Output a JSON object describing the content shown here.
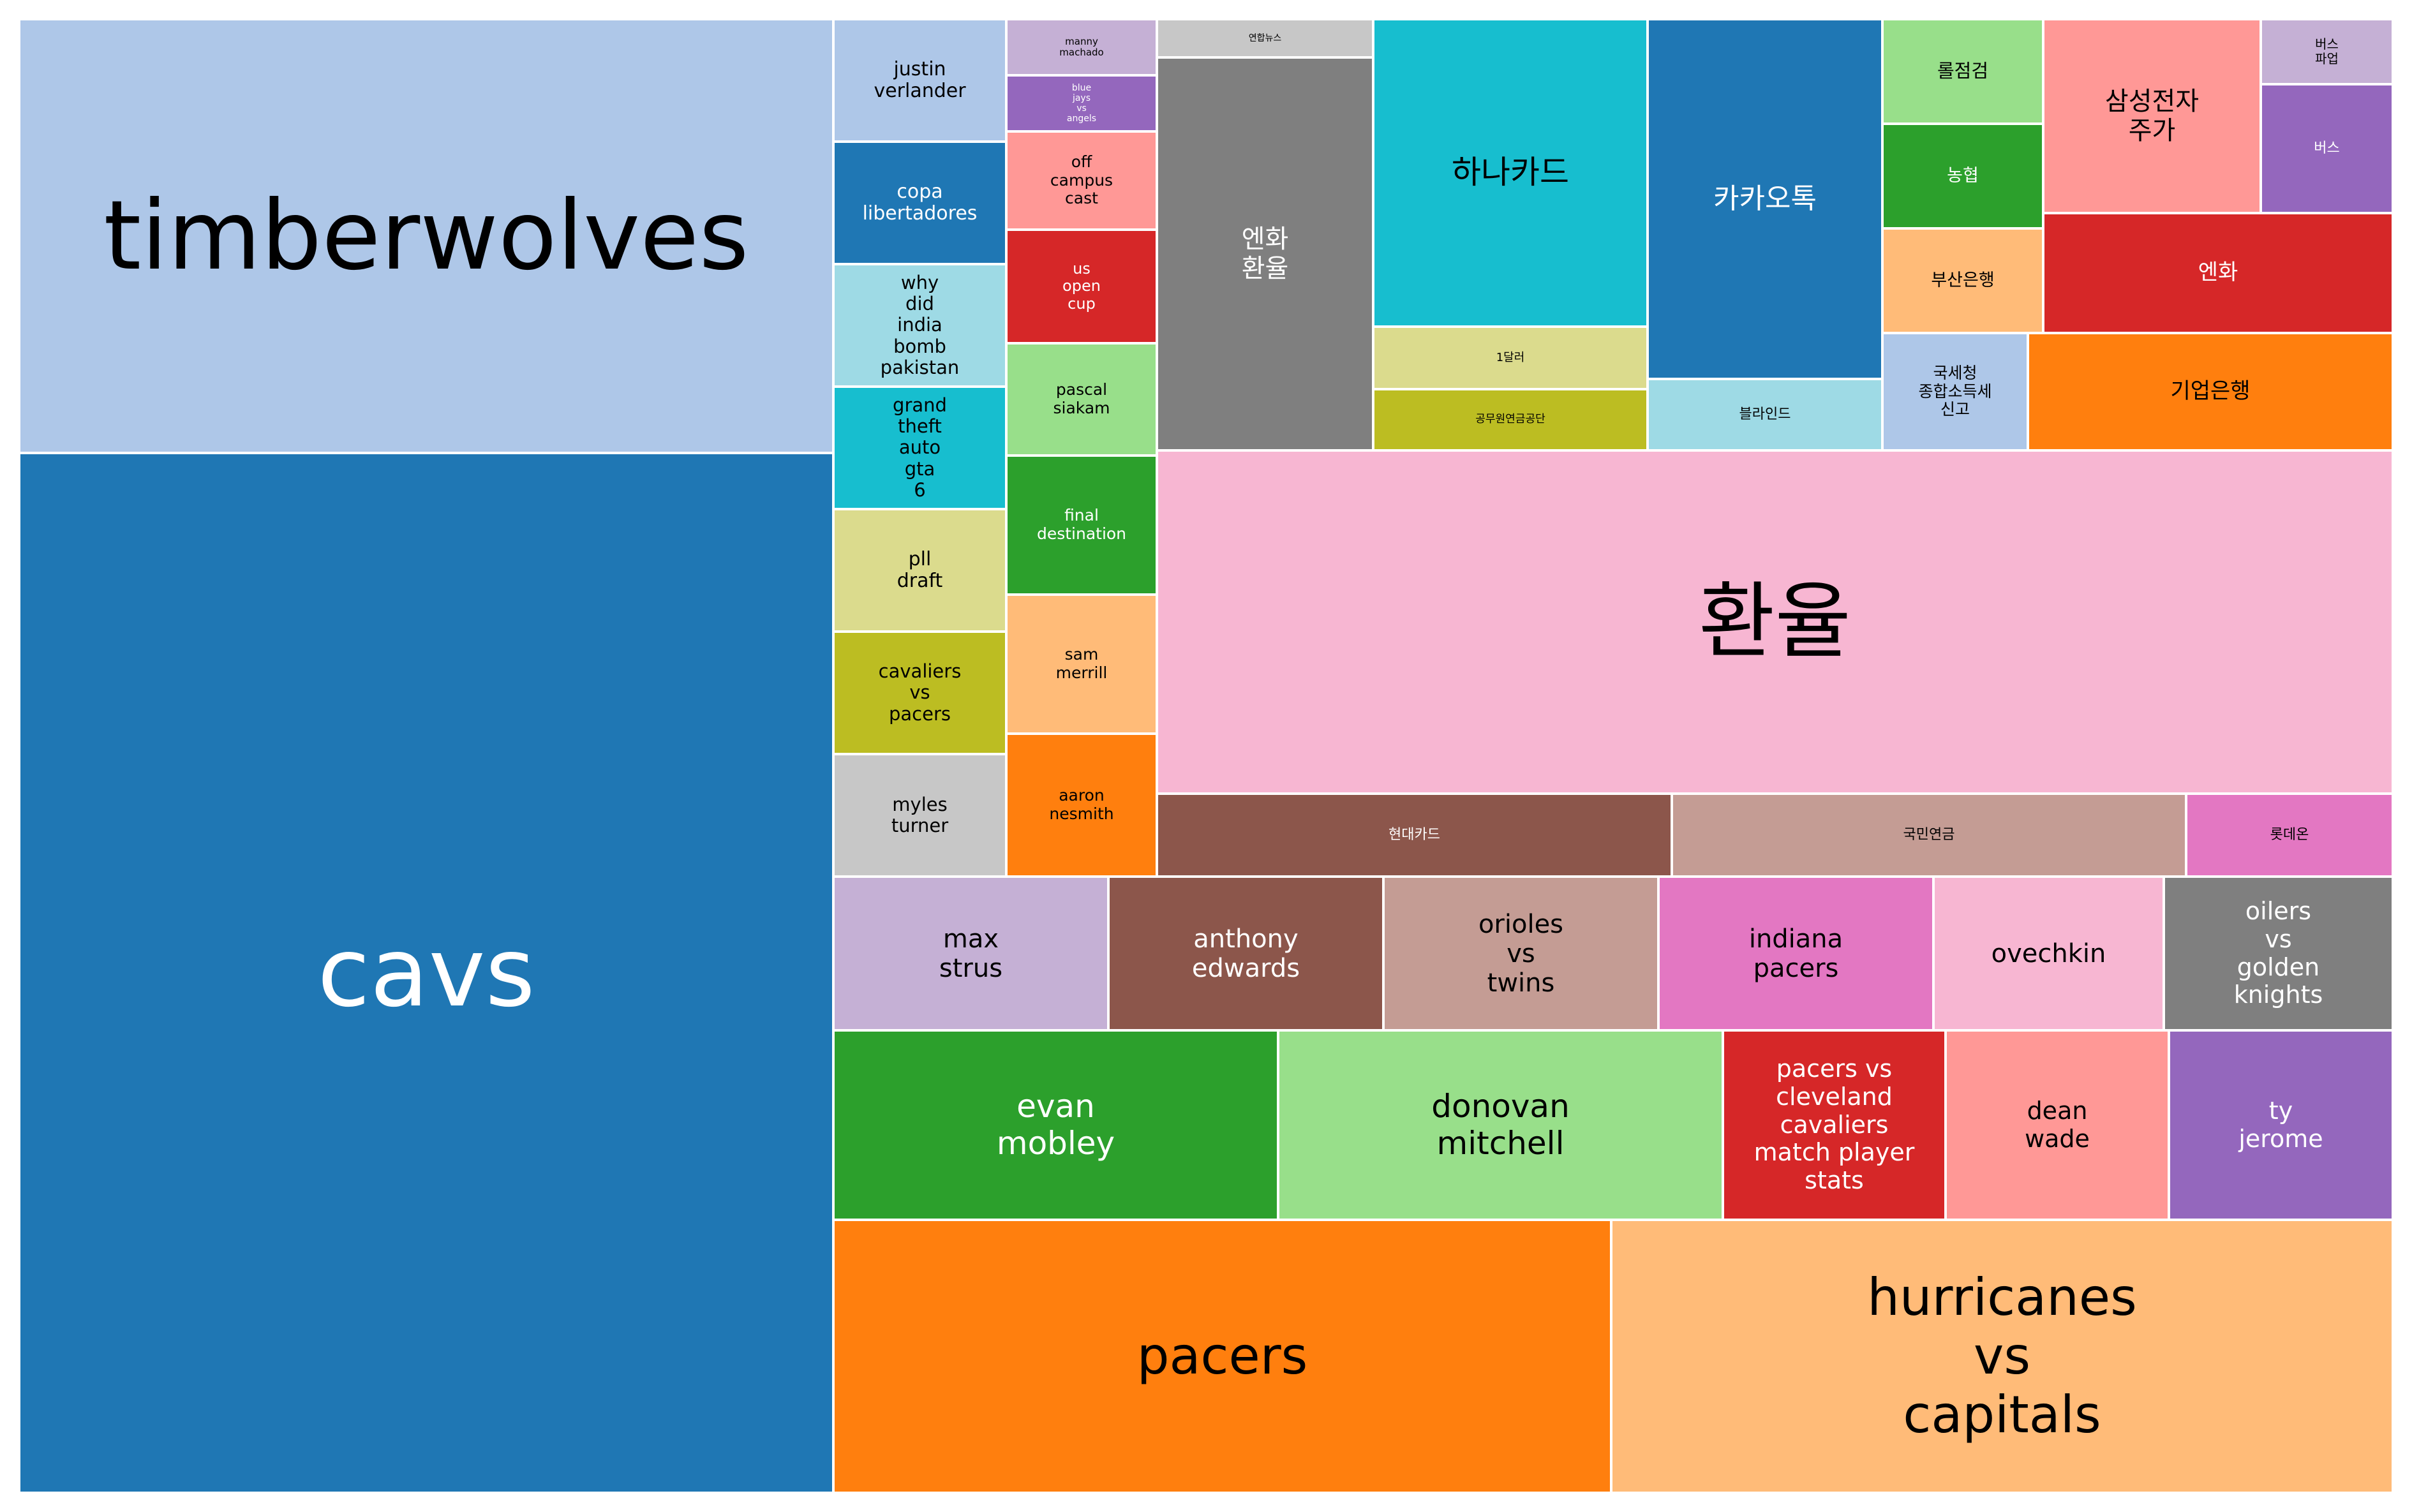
{
  "chart_data": {
    "type": "treemap",
    "title": "",
    "items": [
      {
        "label": "timberwolves",
        "color": "#aec7e8",
        "text_color": "#000000"
      },
      {
        "label": "cavs",
        "color": "#1f77b4",
        "text_color": "#ffffff"
      },
      {
        "label": "justin\nverlander",
        "color": "#aec7e8",
        "text_color": "#000000"
      },
      {
        "label": "copa\nlibertadores",
        "color": "#1f77b4",
        "text_color": "#ffffff"
      },
      {
        "label": "why\ndid\nindia\nbomb\npakistan",
        "color": "#9edae5",
        "text_color": "#000000"
      },
      {
        "label": "grand\ntheft\nauto\ngta\n6",
        "color": "#17becf",
        "text_color": "#000000"
      },
      {
        "label": "pll\ndraft",
        "color": "#dbdb8d",
        "text_color": "#000000"
      },
      {
        "label": "cavaliers\nvs\npacers",
        "color": "#bcbd22",
        "text_color": "#000000"
      },
      {
        "label": "myles\nturner",
        "color": "#c7c7c7",
        "text_color": "#000000"
      },
      {
        "label": "manny\nmachado",
        "color": "#c5b0d5",
        "text_color": "#000000"
      },
      {
        "label": "blue\njays\nvs\nangels",
        "color": "#9467bd",
        "text_color": "#ffffff"
      },
      {
        "label": "off\ncampus\ncast",
        "color": "#ff9896",
        "text_color": "#000000"
      },
      {
        "label": "us\nopen\ncup",
        "color": "#d62728",
        "text_color": "#ffffff"
      },
      {
        "label": "pascal\nsiakam",
        "color": "#98df8a",
        "text_color": "#000000"
      },
      {
        "label": "final\ndestination",
        "color": "#2ca02c",
        "text_color": "#ffffff"
      },
      {
        "label": "sam\nmerrill",
        "color": "#ffbb78",
        "text_color": "#000000"
      },
      {
        "label": "aaron\nnesmith",
        "color": "#ff7f0e",
        "text_color": "#000000"
      },
      {
        "label": "연합뉴스",
        "color": "#c7c7c7",
        "text_color": "#000000"
      },
      {
        "label": "엔화\n환율",
        "color": "#7f7f7f",
        "text_color": "#ffffff"
      },
      {
        "label": "하나카드",
        "color": "#17becf",
        "text_color": "#000000"
      },
      {
        "label": "1달러",
        "color": "#dbdb8d",
        "text_color": "#000000"
      },
      {
        "label": "공무원연금공단",
        "color": "#bcbd22",
        "text_color": "#000000"
      },
      {
        "label": "카카오톡",
        "color": "#1f77b4",
        "text_color": "#ffffff"
      },
      {
        "label": "블라인드",
        "color": "#9edae5",
        "text_color": "#000000"
      },
      {
        "label": "롤점검",
        "color": "#98df8a",
        "text_color": "#000000"
      },
      {
        "label": "농협",
        "color": "#2ca02c",
        "text_color": "#ffffff"
      },
      {
        "label": "부산은행",
        "color": "#ffbb78",
        "text_color": "#000000"
      },
      {
        "label": "국세청\n종합소득세\n신고",
        "color": "#aec7e8",
        "text_color": "#000000"
      },
      {
        "label": "삼성전자\n주가",
        "color": "#ff9896",
        "text_color": "#000000"
      },
      {
        "label": "버스\n파업",
        "color": "#c5b0d5",
        "text_color": "#000000"
      },
      {
        "label": "버스",
        "color": "#9467bd",
        "text_color": "#ffffff"
      },
      {
        "label": "엔화",
        "color": "#d62728",
        "text_color": "#ffffff"
      },
      {
        "label": "기업은행",
        "color": "#ff7f0e",
        "text_color": "#000000"
      },
      {
        "label": "환율",
        "color": "#f7b6d2",
        "text_color": "#000000"
      },
      {
        "label": "현대카드",
        "color": "#8c564b",
        "text_color": "#ffffff"
      },
      {
        "label": "국민연금",
        "color": "#c49c94",
        "text_color": "#000000"
      },
      {
        "label": "롯데온",
        "color": "#e377c2",
        "text_color": "#000000"
      },
      {
        "label": "max\nstrus",
        "color": "#c5b0d5",
        "text_color": "#000000"
      },
      {
        "label": "anthony\nedwards",
        "color": "#8c564b",
        "text_color": "#ffffff"
      },
      {
        "label": "orioles\nvs\ntwins",
        "color": "#c49c94",
        "text_color": "#000000"
      },
      {
        "label": "indiana\npacers",
        "color": "#e377c2",
        "text_color": "#000000"
      },
      {
        "label": "ovechkin",
        "color": "#f7b6d2",
        "text_color": "#000000"
      },
      {
        "label": "oilers\nvs\ngolden\nknights",
        "color": "#7f7f7f",
        "text_color": "#ffffff"
      },
      {
        "label": "evan\nmobley",
        "color": "#2ca02c",
        "text_color": "#ffffff"
      },
      {
        "label": "donovan\nmitchell",
        "color": "#98df8a",
        "text_color": "#000000"
      },
      {
        "label": "pacers vs\ncleveland cavaliers\nmatch player\nstats",
        "color": "#d62728",
        "text_color": "#ffffff"
      },
      {
        "label": "dean\nwade",
        "color": "#ff9896",
        "text_color": "#000000"
      },
      {
        "label": "ty\njerome",
        "color": "#9467bd",
        "text_color": "#ffffff"
      },
      {
        "label": "pacers",
        "color": "#ff7f0e",
        "text_color": "#000000"
      },
      {
        "label": "hurricanes\nvs\ncapitals",
        "color": "#ffbb78",
        "text_color": "#000000"
      }
    ]
  }
}
